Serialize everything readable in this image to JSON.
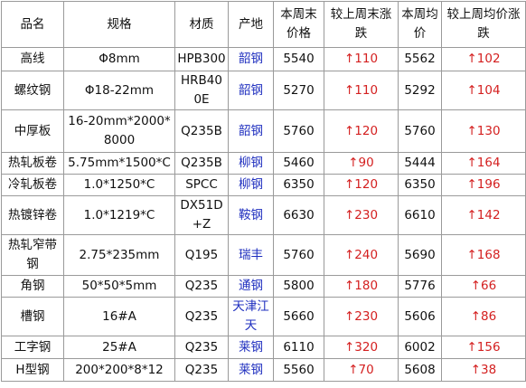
{
  "table": {
    "header": [
      "品名",
      "规格",
      "材质",
      "产地",
      "本周末价格",
      "较上周末涨跌",
      "本周均价",
      "较上周均价涨跌"
    ],
    "rows": [
      [
        "高线",
        "Φ8mm",
        "HPB300",
        "韶钢",
        "5540",
        "↑110",
        "5562",
        "↑102"
      ],
      [
        "螺纹钢",
        "Φ18-22mm",
        "HRB400E",
        "韶钢",
        "5270",
        "↑110",
        "5292",
        "↑104"
      ],
      [
        "中厚板",
        "16-20mm*2000*8000",
        "Q235B",
        "韶钢",
        "5760",
        "↑120",
        "5760",
        "↑130"
      ],
      [
        "热轧板卷",
        "5.75mm*1500*C",
        "Q235B",
        "柳钢",
        "5460",
        "↑90",
        "5444",
        "↑164"
      ],
      [
        "冷轧板卷",
        "1.0*1250*C",
        "SPCC",
        "柳钢",
        "6350",
        "↑120",
        "6350",
        "↑196"
      ],
      [
        "热镀锌卷",
        "1.0*1219*C",
        "DX51D+Z",
        "鞍钢",
        "6630",
        "↑230",
        "6610",
        "↑142"
      ],
      [
        "热轧窄带钢",
        "2.75*235mm",
        "Q195",
        "瑞丰",
        "5760",
        "↑240",
        "5690",
        "↑168"
      ],
      [
        "角钢",
        "50*50*5mm",
        "Q235",
        "通钢",
        "5800",
        "↑180",
        "5776",
        "↑66"
      ],
      [
        "槽钢",
        "16#A",
        "Q235",
        "天津江天",
        "5660",
        "↑230",
        "5606",
        "↑86"
      ],
      [
        "工字钢",
        "25#A",
        "Q235",
        "莱钢",
        "6110",
        "↑320",
        "6002",
        "↑156"
      ],
      [
        "H型钢",
        "200*200*8*12",
        "Q235",
        "莱钢",
        "5560",
        "↑70",
        "5608",
        "↑38"
      ]
    ]
  }
}
